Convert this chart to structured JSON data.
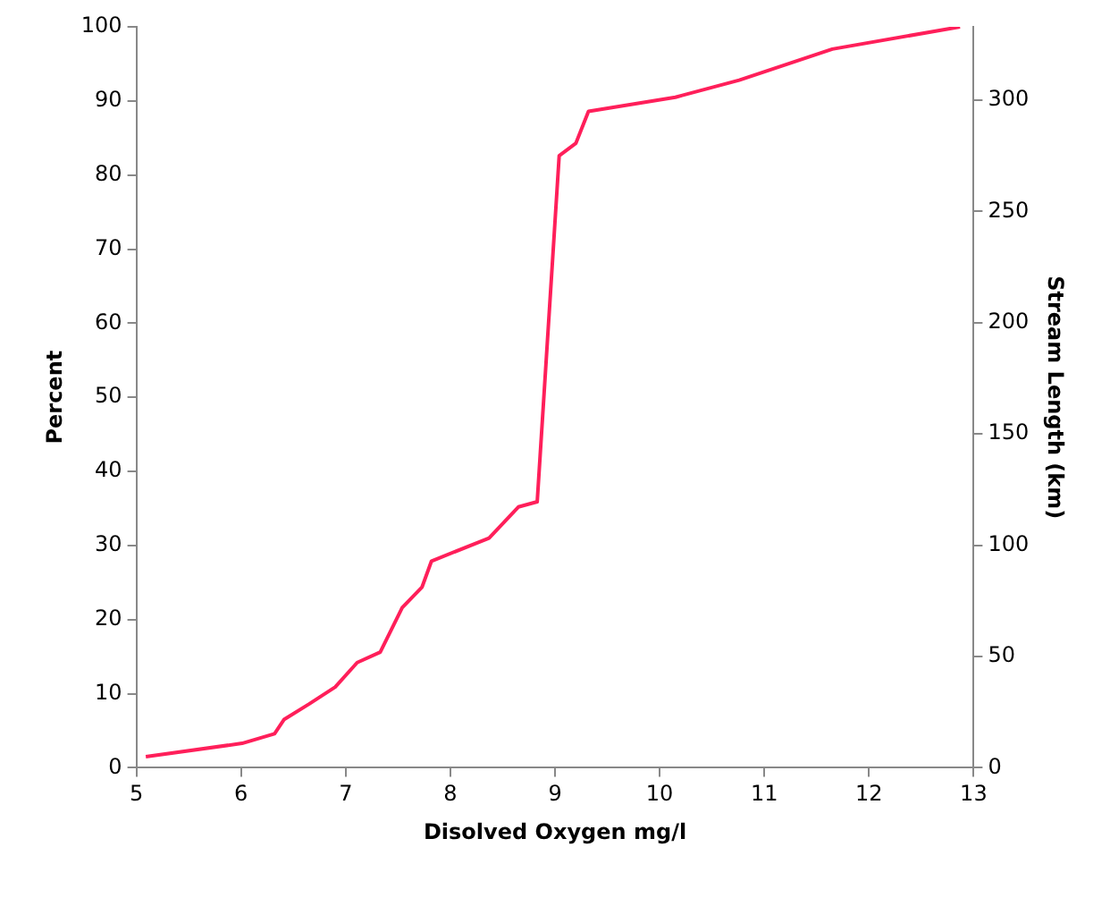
{
  "chart_data": {
    "type": "line",
    "xlabel": "Disolved Oxygen mg/l",
    "ylabel": "Percent",
    "y2label": "Stream Length (km)",
    "series": [
      {
        "color": "#ff1f5a",
        "x": [
          5.09,
          6.01,
          6.32,
          6.41,
          6.65,
          6.9,
          7.11,
          7.33,
          7.54,
          7.73,
          7.82,
          8.37,
          8.65,
          8.83,
          9.04,
          9.2,
          9.32,
          10.15,
          10.76,
          11.65,
          12.87
        ],
        "values": [
          1.5,
          3.3,
          4.6,
          6.5,
          8.6,
          10.9,
          14.2,
          15.6,
          21.6,
          24.4,
          27.9,
          31,
          35.2,
          35.9,
          82.6,
          84.3,
          88.6,
          90.5,
          92.8,
          97,
          100
        ]
      }
    ],
    "xlim": [
      5,
      13
    ],
    "xticks": [
      5,
      6,
      7,
      8,
      9,
      10,
      11,
      12,
      13
    ],
    "ylim": [
      0,
      100
    ],
    "yticks": [
      0,
      10,
      20,
      30,
      40,
      50,
      60,
      70,
      80,
      90,
      100
    ],
    "y2lim": [
      0,
      333
    ],
    "y2ticks": [
      0,
      50,
      100,
      150,
      200,
      250,
      300
    ],
    "grid": false,
    "legend": false,
    "marker": "none",
    "line_style": "solid"
  }
}
